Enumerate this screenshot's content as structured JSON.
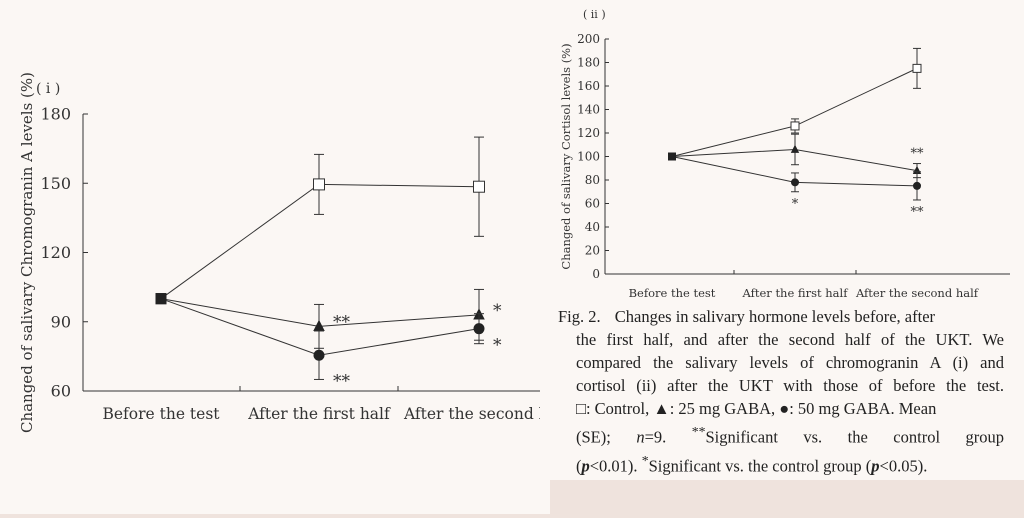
{
  "chart_data": [
    {
      "type": "line",
      "panel_label": "( i )",
      "title": "",
      "xlabel": "",
      "ylabel": "Changed of salivary Chromogranin A levels (%)",
      "ylim": [
        60,
        180
      ],
      "yticks": [
        60,
        90,
        120,
        150,
        180
      ],
      "ytick_labels": [
        "60",
        "90",
        "120",
        "150",
        "180"
      ],
      "categories": [
        "Before the test",
        "After the first half",
        "After the second h"
      ],
      "grid": false,
      "series": [
        {
          "name": "Control",
          "marker": "open-square",
          "values": [
            100,
            149.5,
            148.5
          ],
          "errors": [
            0,
            13,
            21.5
          ]
        },
        {
          "name": "25 mg GABA",
          "marker": "filled-triangle",
          "values": [
            100,
            88,
            93
          ],
          "errors": [
            0,
            9.5,
            11
          ]
        },
        {
          "name": "50 mg GABA",
          "marker": "filled-circle",
          "values": [
            100,
            75.5,
            87
          ],
          "errors": [
            0,
            10.5,
            6.5
          ]
        }
      ],
      "annotations": [
        {
          "text": "**",
          "category": 1,
          "near_series": "25 mg GABA",
          "side": "right"
        },
        {
          "text": "**",
          "category": 1,
          "near_series": "50 mg GABA",
          "side": "below-right"
        },
        {
          "text": "*",
          "category": 2,
          "near_series": "25 mg GABA",
          "side": "right"
        },
        {
          "text": "*",
          "category": 2,
          "near_series": "50 mg GABA",
          "side": "below-right"
        }
      ]
    },
    {
      "type": "line",
      "panel_label": "( ii )",
      "title": "",
      "xlabel": "",
      "ylabel": "Changed of salivary Cortisol levels (%)",
      "ylim": [
        0,
        200
      ],
      "yticks": [
        0,
        20,
        40,
        60,
        80,
        100,
        120,
        140,
        160,
        180,
        200
      ],
      "ytick_labels": [
        "0",
        "20",
        "40",
        "60",
        "80",
        "100",
        "120",
        "140",
        "160",
        "180",
        "200"
      ],
      "categories": [
        "Before the test",
        "After the first half",
        "After the second half"
      ],
      "grid": false,
      "series": [
        {
          "name": "Control",
          "marker": "open-square",
          "values": [
            100,
            126,
            175
          ],
          "errors": [
            0,
            6,
            17
          ]
        },
        {
          "name": "25 mg GABA",
          "marker": "filled-triangle",
          "values": [
            100,
            106,
            88
          ],
          "errors": [
            0,
            13,
            6
          ]
        },
        {
          "name": "50 mg GABA",
          "marker": "filled-circle",
          "values": [
            100,
            78,
            75
          ],
          "errors": [
            0,
            8,
            12
          ]
        }
      ],
      "annotations": [
        {
          "text": "*",
          "category": 1,
          "near_series": "50 mg GABA",
          "side": "below"
        },
        {
          "text": "**",
          "category": 2,
          "near_series": "25 mg GABA",
          "side": "above"
        },
        {
          "text": "**",
          "category": 2,
          "near_series": "50 mg GABA",
          "side": "below"
        }
      ]
    }
  ],
  "caption": {
    "fig_label": "Fig. 2.",
    "line1": "Changes in salivary hormone levels before, after",
    "line2": "the first half, and after the second half of the UKT. We",
    "line3": "compared the salivary levels of chromogranin A (i) and",
    "line4": "cortisol (ii) after the UKT with those of before the test.",
    "legend": {
      "control_symbol": "□",
      "control": ": Control,",
      "tri_symbol": "▲",
      "tri": ": 25 mg GABA,",
      "circle_symbol": "●",
      "circle": ": 50 mg GABA. Mean"
    },
    "line6_pre": "(SE);",
    "n_symbol": "n",
    "n_value": "=9.",
    "sig_marker_2": "**",
    "sig_text_2": "Significant vs. the control group",
    "line7_pre": "(",
    "p_symbol_1": "p",
    "p_value_1": "<0.01).",
    "sig_marker_1": "*",
    "sig_text_1": "Significant vs. the control group (",
    "p_symbol_2": "p",
    "p_value_2": "<0.05)."
  },
  "colors": {
    "background": "#efe3dd",
    "panel": "#fbf7f4",
    "ink": "#333333"
  }
}
